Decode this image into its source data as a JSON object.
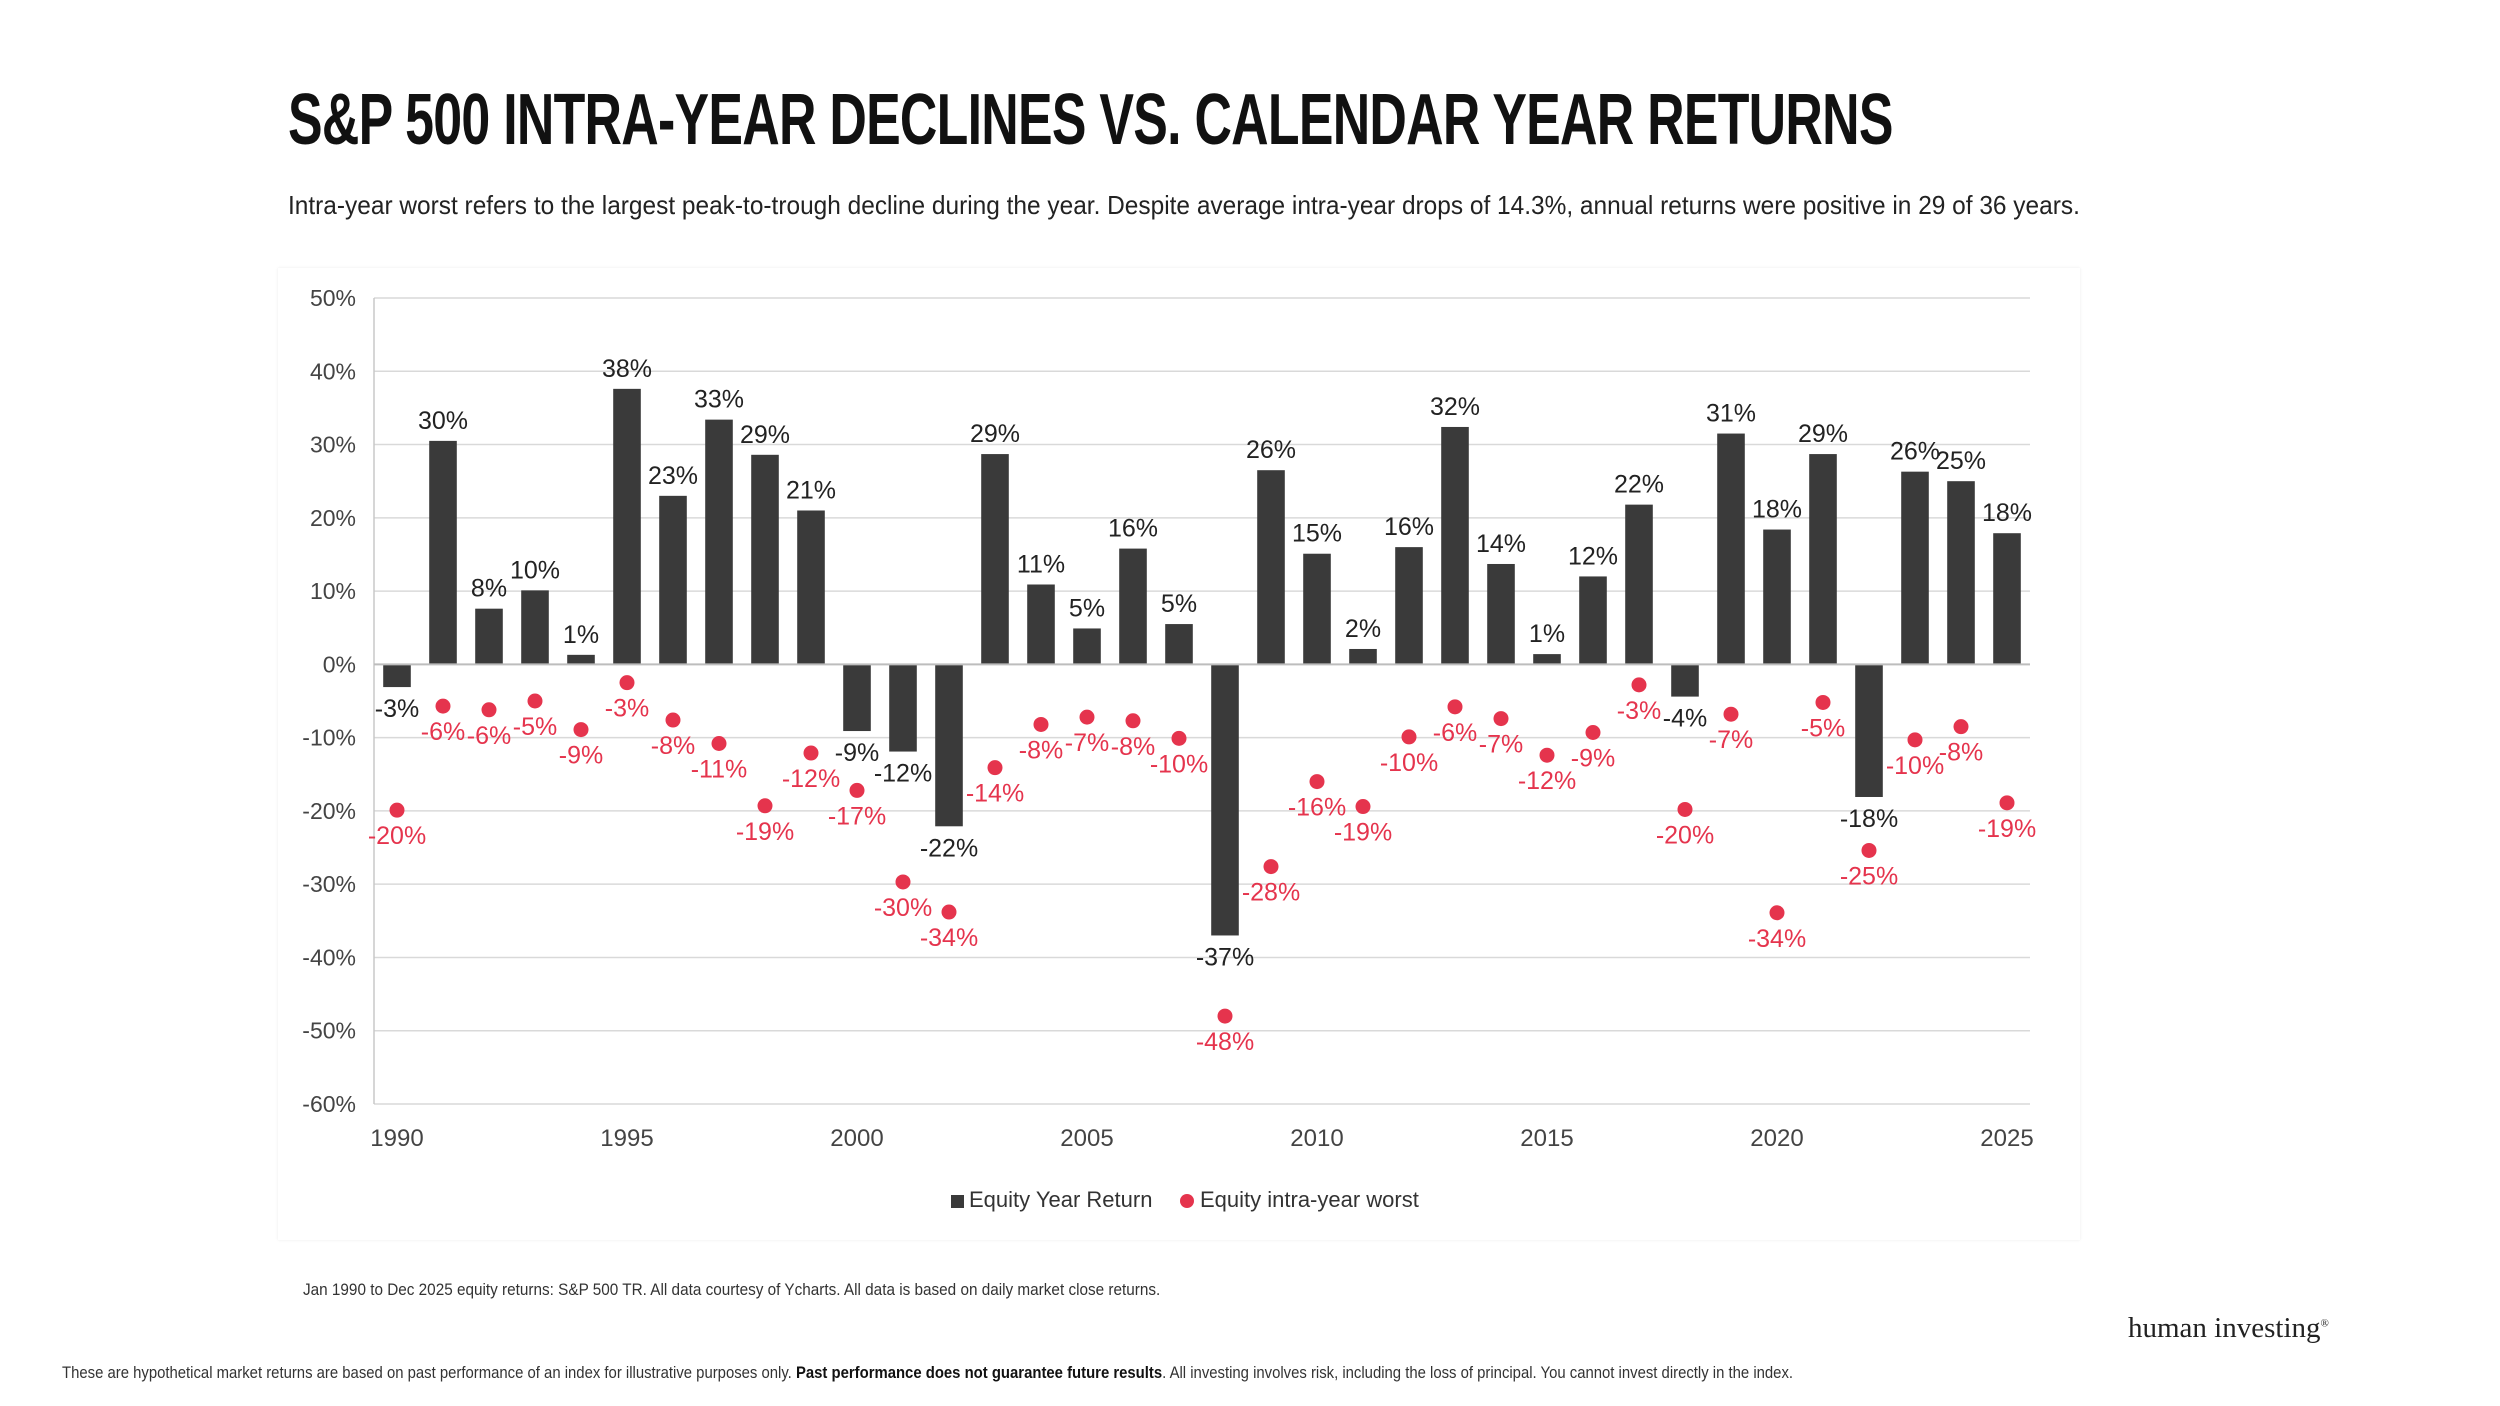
{
  "page": {
    "title": "S&P 500 INTRA-YEAR DECLINES VS. CALENDAR YEAR RETURNS",
    "subtitle": "Intra-year worst refers to the largest peak-to-trough decline during the year. Despite average intra-year drops of 14.3%, annual returns were positive in 29 of 36 years.",
    "source_note": "Jan 1990 to Dec 2025 equity returns: S&P 500 TR. All data courtesy of Ycharts. All data is based on daily market close returns.",
    "logo_text": "human investing",
    "logo_mark": "®",
    "disclaimer_part1": "These are hypothetical market returns are based on past performance of an index for illustrative purposes only. ",
    "disclaimer_bold": "Past performance does not guarantee future results",
    "disclaimer_part2": ". All investing involves risk, including the loss of principal. You cannot invest directly in the index."
  },
  "colors": {
    "bar": "#3a3a3a",
    "dot": "#e5344d",
    "grid": "#d9d9d9",
    "axis_text": "#444444",
    "label_text": "#222222"
  },
  "chart_data": {
    "type": "bar",
    "title": "S&P 500 INTRA-YEAR DECLINES VS. CALENDAR YEAR RETURNS",
    "xlabel": "",
    "ylabel": "",
    "ylim": [
      -60,
      50
    ],
    "yticks": [
      50,
      40,
      30,
      20,
      10,
      0,
      -10,
      -20,
      -30,
      -40,
      -50,
      -60
    ],
    "ytick_labels": [
      "50%",
      "40%",
      "30%",
      "20%",
      "10%",
      "0%",
      "-10%",
      "-20%",
      "-30%",
      "-40%",
      "-50%",
      "-60%"
    ],
    "xtick_labels": [
      "1990",
      "1995",
      "2000",
      "2005",
      "2010",
      "2015",
      "2020",
      "2025"
    ],
    "grid": true,
    "legend_position": "bottom-center",
    "categories": [
      "1990",
      "1991",
      "1992",
      "1993",
      "1994",
      "1995",
      "1996",
      "1997",
      "1998",
      "1999",
      "2000",
      "2001",
      "2002",
      "2003",
      "2004",
      "2005",
      "2006",
      "2007",
      "2008",
      "2009",
      "2010",
      "2011",
      "2012",
      "2013",
      "2014",
      "2015",
      "2016",
      "2017",
      "2018",
      "2019",
      "2020",
      "2021",
      "2022",
      "2023",
      "2024",
      "2025"
    ],
    "series": [
      {
        "name": "Equity Year Return",
        "type": "bar",
        "values": [
          -3.1,
          30.5,
          7.6,
          10.1,
          1.3,
          37.6,
          23.0,
          33.4,
          28.6,
          21.0,
          -9.1,
          -11.9,
          -22.1,
          28.7,
          10.9,
          4.9,
          15.8,
          5.5,
          -37.0,
          26.5,
          15.1,
          2.1,
          16.0,
          32.4,
          13.7,
          1.4,
          12.0,
          21.8,
          -4.4,
          31.5,
          18.4,
          28.7,
          -18.1,
          26.3,
          25.0,
          17.9
        ],
        "labels": [
          "-3%",
          "30%",
          "8%",
          "10%",
          "1%",
          "38%",
          "23%",
          "33%",
          "29%",
          "21%",
          "-9%",
          "-12%",
          "-22%",
          "29%",
          "11%",
          "5%",
          "16%",
          "5%",
          "-37%",
          "26%",
          "15%",
          "2%",
          "16%",
          "32%",
          "14%",
          "1%",
          "12%",
          "22%",
          "-4%",
          "31%",
          "18%",
          "29%",
          "-18%",
          "26%",
          "25%",
          "18%"
        ]
      },
      {
        "name": "Equity intra-year worst",
        "type": "scatter",
        "values": [
          -19.9,
          -5.7,
          -6.2,
          -5.0,
          -8.9,
          -2.5,
          -7.6,
          -10.8,
          -19.3,
          -12.1,
          -17.2,
          -29.7,
          -33.8,
          -14.1,
          -8.2,
          -7.2,
          -7.7,
          -10.1,
          -48.0,
          -27.6,
          -16.0,
          -19.4,
          -9.9,
          -5.8,
          -7.4,
          -12.4,
          -9.3,
          -2.8,
          -19.8,
          -6.8,
          -33.9,
          -5.2,
          -25.4,
          -10.3,
          -8.5,
          -18.9
        ],
        "labels": [
          "-20%",
          "-6%",
          "-6%",
          "-5%",
          "-9%",
          "-3%",
          "-8%",
          "-11%",
          "-19%",
          "-12%",
          "-17%",
          "-30%",
          "-34%",
          "-14%",
          "-8%",
          "-7%",
          "-8%",
          "-10%",
          "-48%",
          "-28%",
          "-16%",
          "-19%",
          "-10%",
          "-6%",
          "-7%",
          "-12%",
          "-9%",
          "-3%",
          "-20%",
          "-7%",
          "-34%",
          "-5%",
          "-25%",
          "-10%",
          "-8%",
          "-19%"
        ]
      }
    ]
  }
}
